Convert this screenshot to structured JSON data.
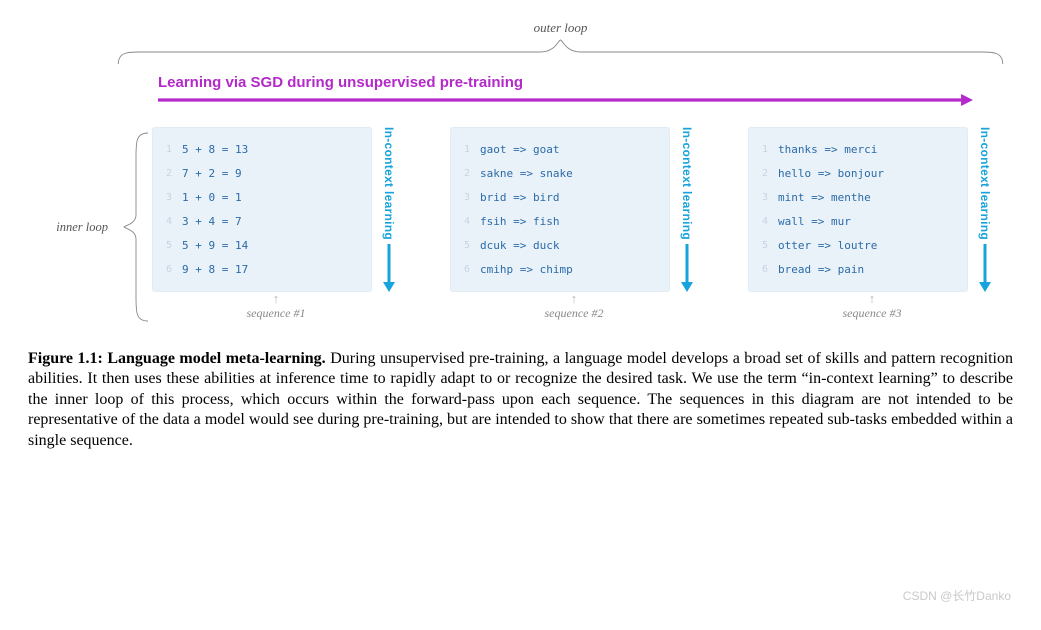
{
  "outerLoopLabel": "outer loop",
  "innerLoopLabel": "inner loop",
  "arrowTitle": "Learning via SGD during unsupervised pre-training",
  "arrowColor": "#b429c9",
  "vLabel": "In-context learning",
  "vLabelColor": "#17a3dc",
  "cardBg": "#eaf2f9",
  "textColor": "#2b6aa8",
  "indexColor": "#c5d4e2",
  "braceColor": "#888888",
  "panels": [
    {
      "seqLabel": "sequence #1",
      "rows": [
        "5 + 8 = 13",
        "7 + 2 = 9",
        "1 + 0 = 1",
        "3 + 4 = 7",
        "5 + 9 = 14",
        "9 + 8 = 17"
      ]
    },
    {
      "seqLabel": "sequence #2",
      "rows": [
        "gaot => goat",
        "sakne => snake",
        "brid => bird",
        "fsih => fish",
        "dcuk => duck",
        "cmihp => chimp"
      ]
    },
    {
      "seqLabel": "sequence #3",
      "rows": [
        "thanks => merci",
        "hello => bonjour",
        "mint => menthe",
        "wall => mur",
        "otter => loutre",
        "bread => pain"
      ]
    }
  ],
  "caption": {
    "bold": "Figure 1.1: Language model meta-learning.",
    "text": " During unsupervised pre-training, a language model develops a broad set of skills and pattern recognition abilities. It then uses these abilities at inference time to rapidly adapt to or recognize the desired task. We use the term “in-context learning” to describe the inner loop of this process, which occurs within the forward-pass upon each sequence. The sequences in this diagram are not intended to be representative of the data a model would see during pre-training, but are intended to show that there are sometimes repeated sub-tasks embedded within a single sequence."
  },
  "watermark": "CSDN @长竹Danko"
}
